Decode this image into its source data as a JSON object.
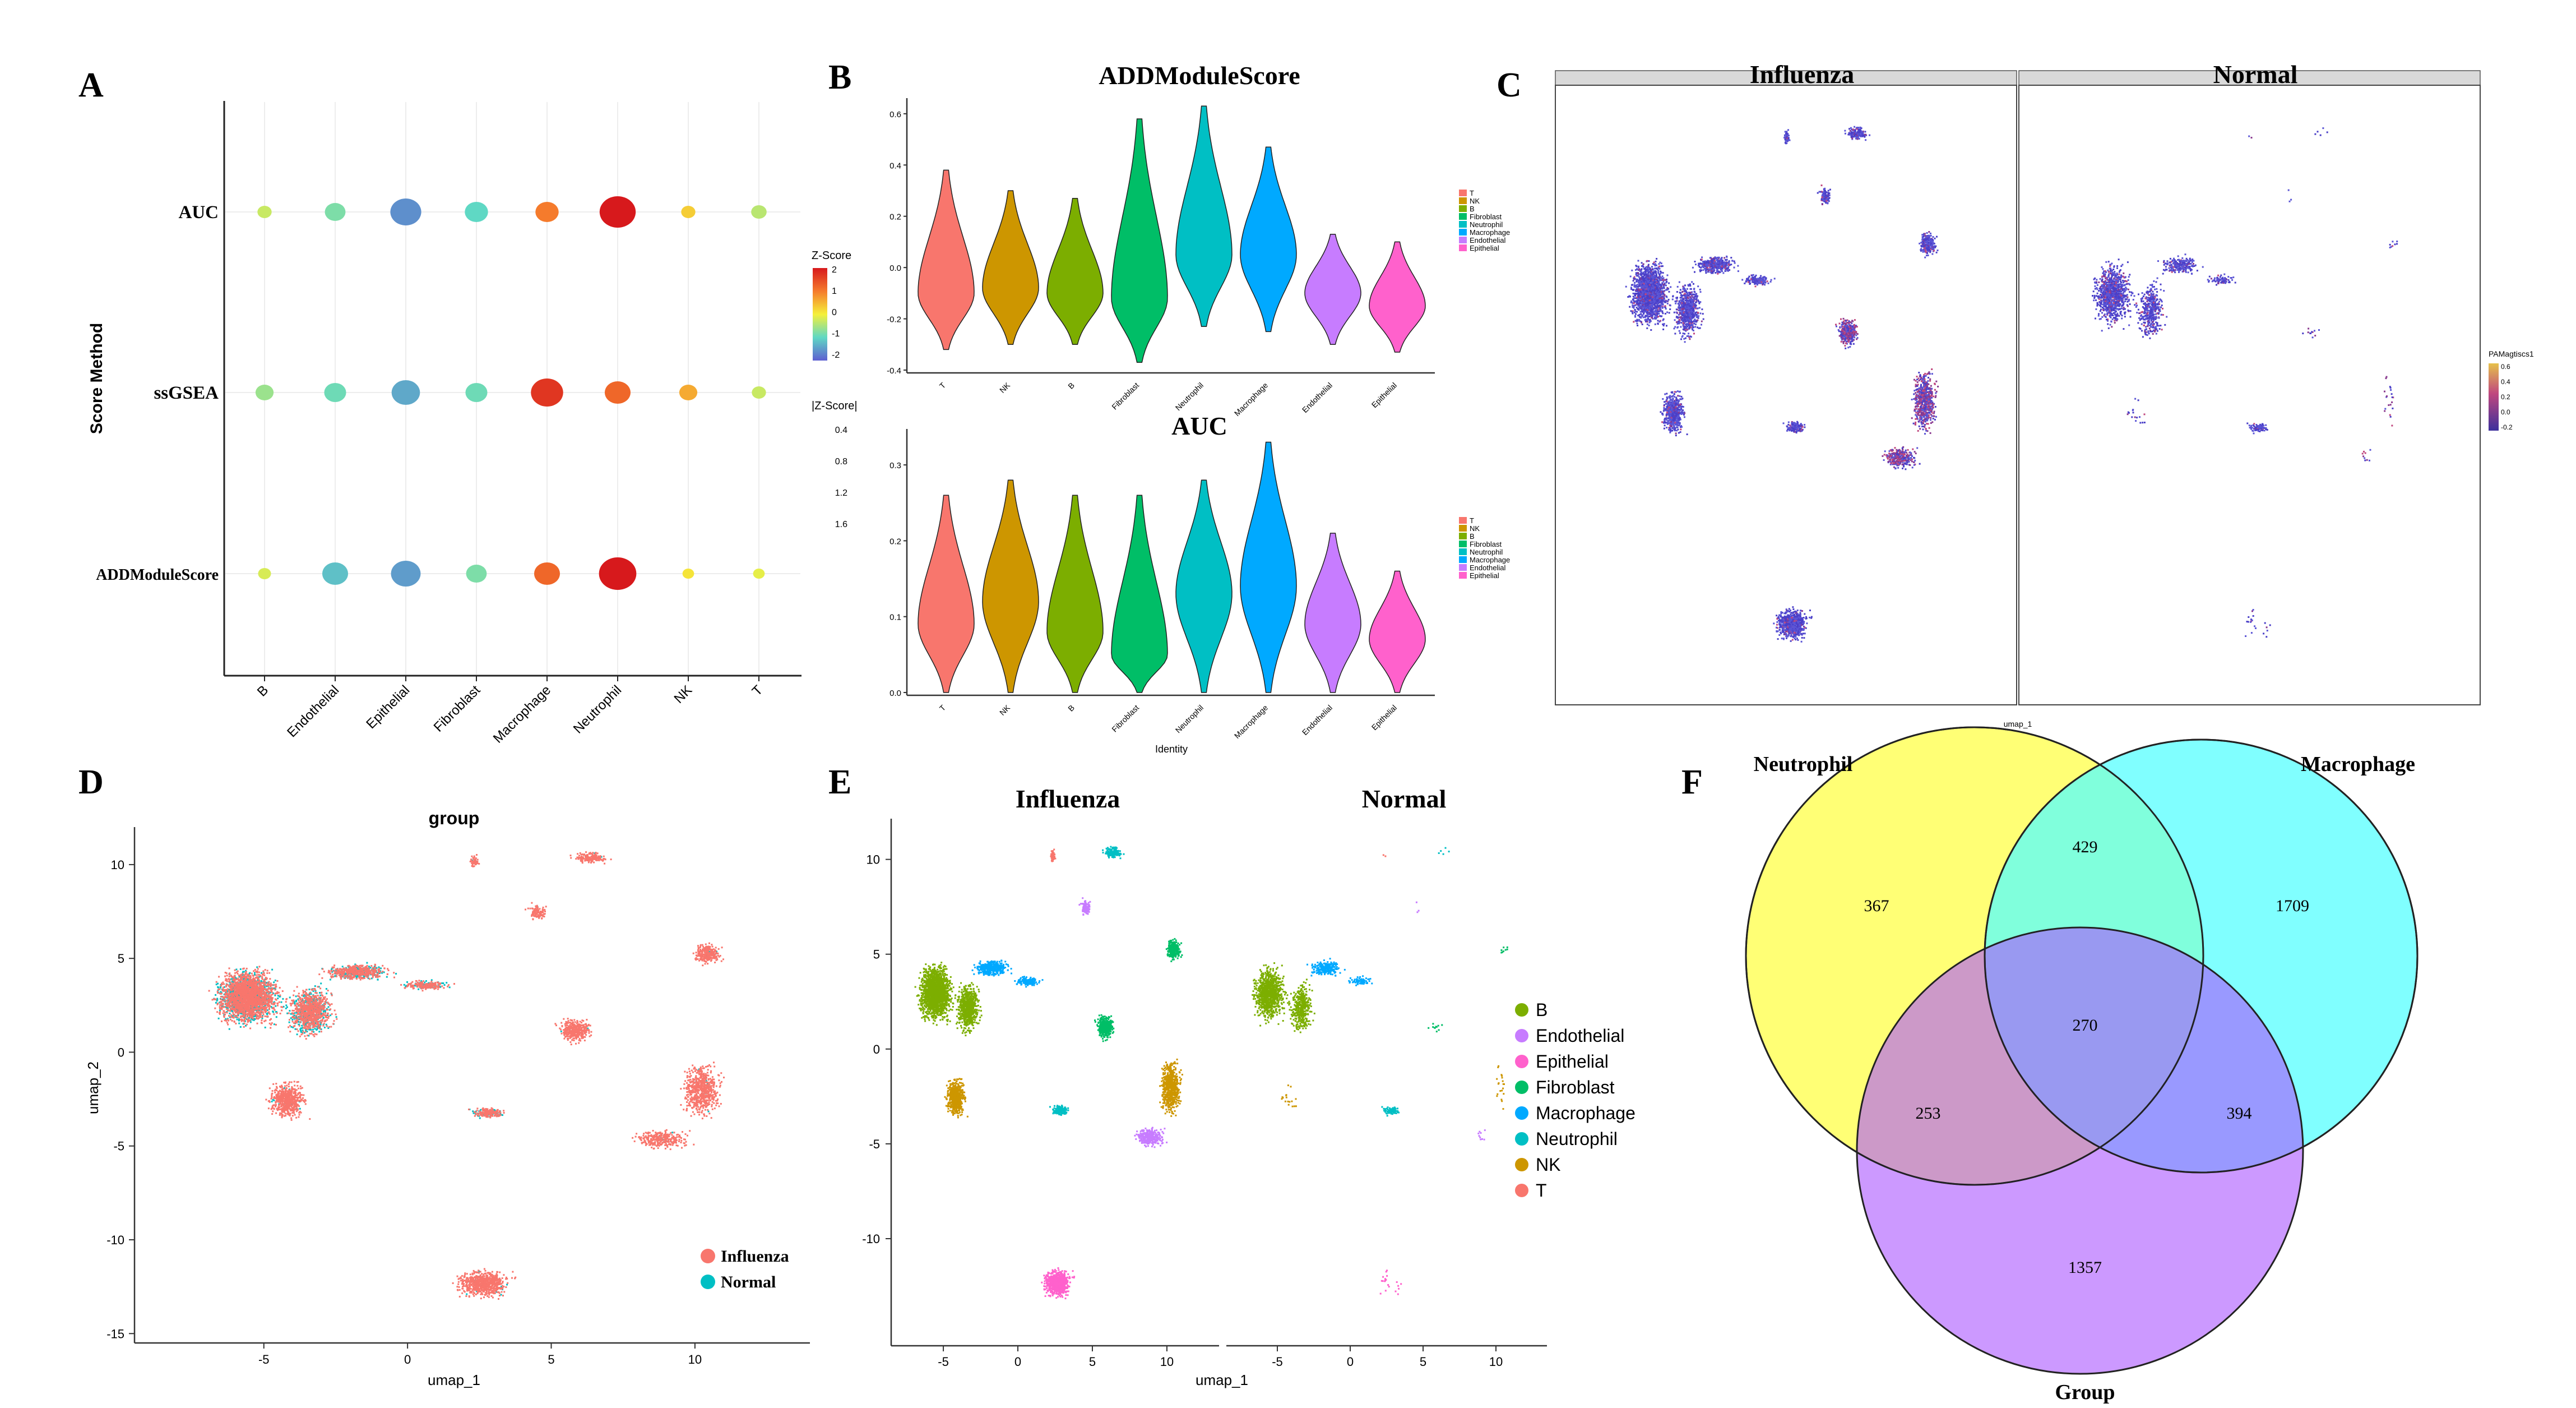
{
  "panel_labels": [
    "A",
    "B",
    "C",
    "D",
    "E",
    "F"
  ],
  "colors": {
    "T": "#f8766d",
    "NK": "#cd9600",
    "B": "#7cae00",
    "Fibroblast": "#00be67",
    "Neutrophil": "#00bfc4",
    "Macrophage": "#00a9ff",
    "Endothelial": "#c77cff",
    "Epithelial": "#ff61cc",
    "influenza": "#f8766d",
    "normal": "#00bfc4",
    "venn_yellow": "#ffff66",
    "venn_cyan": "#66ffff",
    "venn_purple": "#cc88ff"
  },
  "chart_data": [
    {
      "id": "A",
      "type": "scatter",
      "subtype": "dot-heatmap",
      "ylabel": "Score Method",
      "methods": [
        "AUC",
        "ssGSEA",
        "ADDModuleScore"
      ],
      "celltypes": [
        "B",
        "Endothelial",
        "Epithelial",
        "Fibroblast",
        "Macrophage",
        "Neutrophil",
        "NK",
        "T"
      ],
      "zscore": [
        [
          -0.3,
          -0.8,
          -1.6,
          -1.0,
          1.0,
          2.0,
          0.3,
          -0.4
        ],
        [
          -0.6,
          -0.9,
          -1.4,
          -0.9,
          1.7,
          1.2,
          0.6,
          -0.3
        ],
        [
          -0.2,
          -1.2,
          -1.5,
          -0.8,
          1.2,
          2.1,
          0.1,
          -0.1
        ]
      ],
      "abs_z": [
        [
          0.3,
          0.8,
          1.6,
          1.0,
          1.0,
          2.0,
          0.3,
          0.4
        ],
        [
          0.6,
          0.9,
          1.4,
          0.9,
          1.7,
          1.2,
          0.6,
          0.3
        ],
        [
          0.2,
          1.2,
          1.5,
          0.8,
          1.2,
          2.1,
          0.1,
          0.1
        ]
      ],
      "legend_color_title": "Z-Score",
      "legend_color_ticks": [
        "2",
        "1",
        "0",
        "-1",
        "-2"
      ],
      "legend_size_title": "|Z-Score|",
      "legend_size_ticks": [
        "0.4",
        "0.8",
        "1.2",
        "1.6"
      ]
    },
    {
      "id": "B1",
      "type": "violin",
      "title": "ADDModuleScore",
      "categories": [
        "T",
        "NK",
        "B",
        "Fibroblast",
        "Neutrophil",
        "Macrophage",
        "Endothelial",
        "Epithelial"
      ],
      "ylim": [
        -0.4,
        0.65
      ],
      "yticks": [
        "0.6",
        "0.4",
        "0.2",
        "0.0",
        "-0.2",
        "-0.4"
      ],
      "min": [
        -0.32,
        -0.3,
        -0.3,
        -0.37,
        -0.23,
        -0.25,
        -0.3,
        -0.33
      ],
      "max": [
        0.38,
        0.3,
        0.27,
        0.58,
        0.63,
        0.47,
        0.13,
        0.1
      ],
      "mode": [
        -0.1,
        -0.08,
        -0.1,
        -0.12,
        0.05,
        0.05,
        -0.1,
        -0.15
      ],
      "legend": [
        "T",
        "NK",
        "B",
        "Fibroblast",
        "Neutrophil",
        "Macrophage",
        "Endothelial",
        "Epithelial"
      ]
    },
    {
      "id": "B2",
      "type": "violin",
      "title": "AUC",
      "xlabel": "Identity",
      "categories": [
        "T",
        "NK",
        "B",
        "Fibroblast",
        "Neutrophil",
        "Macrophage",
        "Endothelial",
        "Epithelial"
      ],
      "ylim": [
        0.0,
        0.34
      ],
      "yticks": [
        "0.3",
        "0.2",
        "0.1",
        "0.0"
      ],
      "min": [
        0.0,
        0.0,
        0.0,
        0.0,
        0.0,
        0.0,
        0.0,
        0.0
      ],
      "max": [
        0.26,
        0.28,
        0.26,
        0.26,
        0.28,
        0.33,
        0.21,
        0.16
      ],
      "mode": [
        0.09,
        0.12,
        0.08,
        0.05,
        0.13,
        0.14,
        0.09,
        0.07
      ],
      "legend": [
        "T",
        "NK",
        "B",
        "Fibroblast",
        "Neutrophil",
        "Macrophage",
        "Endothelial",
        "Epithelial"
      ]
    },
    {
      "id": "C",
      "type": "scatter",
      "subtype": "umap-feature-facet",
      "facets": [
        "Influenza",
        "Normal"
      ],
      "xlabel": "umap_1",
      "legend_title": "PAMagtiscs1",
      "legend_ticks": [
        "0.6",
        "0.4",
        "0.2",
        "0.0",
        "-0.2"
      ]
    },
    {
      "id": "D",
      "type": "scatter",
      "subtype": "umap",
      "title": "group",
      "xlabel": "umap_1",
      "ylabel": "umap_2",
      "xticks": [
        "-5",
        "0",
        "5",
        "10"
      ],
      "yticks": [
        "10",
        "5",
        "0",
        "-5",
        "-10",
        "-15"
      ],
      "xlim": [
        -9.5,
        14
      ],
      "ylim": [
        -15.5,
        12
      ],
      "legend": [
        "Influenza",
        "Normal"
      ]
    },
    {
      "id": "E",
      "type": "scatter",
      "subtype": "umap-facet",
      "facets": [
        "Influenza",
        "Normal"
      ],
      "xlabel": "umap_1",
      "xticks": [
        "-5",
        "0",
        "5",
        "10"
      ],
      "yticks": [
        "10",
        "5",
        "0",
        "-5",
        "-10"
      ],
      "legend": [
        "B",
        "Endothelial",
        "Epithelial",
        "Fibroblast",
        "Macrophage",
        "Neutrophil",
        "NK",
        "T"
      ]
    },
    {
      "id": "F",
      "type": "venn",
      "sets": [
        "Neutrophil",
        "Macrophage",
        "Group"
      ],
      "regions": {
        "neutrophil_only": 367,
        "macrophage_only": 1709,
        "group_only": 1357,
        "neutrophil_macrophage": 429,
        "neutrophil_group": 253,
        "macrophage_group": 394,
        "all": 270
      }
    }
  ]
}
